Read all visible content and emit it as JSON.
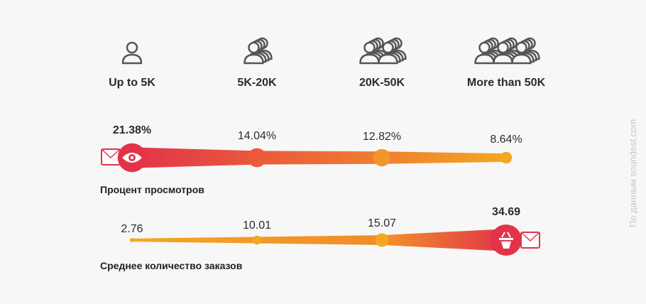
{
  "chart_data": {
    "type": "bubble-line",
    "categories": [
      "Up to 5K",
      "5K-20K",
      "20K-50K",
      "More than 50K"
    ],
    "series": [
      {
        "name": "Процент просмотров",
        "values": [
          21.38,
          14.04,
          12.82,
          8.64
        ],
        "labels": [
          "21.38%",
          "14.04%",
          "12.82%",
          "8.64%"
        ],
        "icon": "eye-icon",
        "end_icon": "envelope-icon"
      },
      {
        "name": "Среднее количество заказов",
        "values": [
          2.76,
          10.01,
          15.07,
          34.69
        ],
        "labels": [
          "2.76",
          "10.01",
          "15.07",
          "34.69"
        ],
        "icon": "basket-icon",
        "end_icon": "envelope-icon"
      }
    ],
    "category_icons": [
      "person-icon",
      "people-2-icon",
      "people-4-icon",
      "people-6-icon"
    ]
  },
  "colors": {
    "red": "#e2334a",
    "orange": "#f5a623",
    "text": "#2b2b2b",
    "icon": "#555555"
  },
  "source": "По данным soundest.com"
}
